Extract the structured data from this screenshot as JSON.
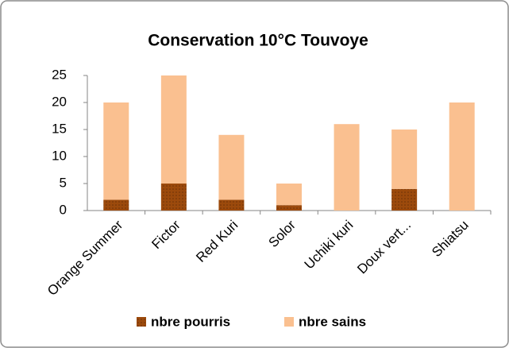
{
  "chart_data": {
    "type": "stacked_bar",
    "title": "Conservation  10°C Touvoye",
    "categories": [
      "Orange Summer",
      "Fictor",
      "Red Kuri",
      "Solor",
      "Uchiki kuri",
      "Doux vert...",
      "Shiatsu"
    ],
    "series": [
      {
        "name": "nbre pourris",
        "color": "#9c4a0c",
        "values": [
          2,
          5,
          2,
          1,
          0,
          4,
          0
        ]
      },
      {
        "name": "nbre sains",
        "color": "#fac090",
        "values": [
          18,
          20,
          12,
          4,
          16,
          11,
          20
        ]
      }
    ],
    "ylim": [
      0,
      25
    ],
    "yticks": [
      0,
      5,
      10,
      15,
      20,
      25
    ],
    "grid": false,
    "legend": "bottom"
  }
}
